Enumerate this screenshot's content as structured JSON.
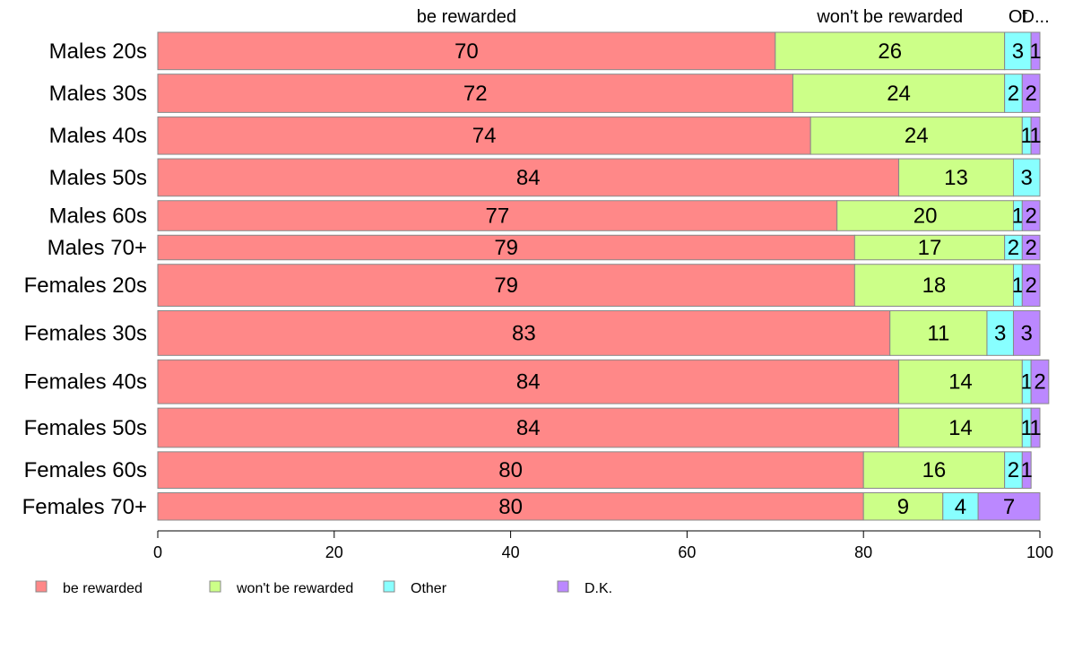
{
  "chart_data": {
    "type": "bar",
    "orientation": "horizontal",
    "stacked": true,
    "categories": [
      "Males 20s",
      "Males 30s",
      "Males 40s",
      "Males 50s",
      "Males 60s",
      "Males 70+",
      "Females 20s",
      "Females 30s",
      "Females 40s",
      "Females 50s",
      "Females 60s",
      "Females 70+"
    ],
    "category_weights": [
      41,
      42,
      41,
      41,
      33,
      27,
      46,
      49,
      48,
      43,
      40,
      30
    ],
    "series": [
      {
        "name": "be rewarded",
        "color": "#ff8888",
        "values": [
          70,
          72,
          74,
          84,
          77,
          79,
          79,
          83,
          84,
          84,
          80,
          80
        ]
      },
      {
        "name": "won't be rewarded",
        "color": "#ccff88",
        "values": [
          26,
          24,
          24,
          13,
          20,
          17,
          18,
          11,
          14,
          14,
          16,
          9
        ]
      },
      {
        "name": "Other",
        "color": "#88ffff",
        "values": [
          3,
          2,
          1,
          3,
          1,
          2,
          1,
          3,
          1,
          1,
          2,
          4
        ]
      },
      {
        "name": "D.K.",
        "color": "#bb88ff",
        "values": [
          1,
          2,
          1,
          0,
          2,
          2,
          2,
          3,
          2,
          1,
          1,
          7
        ]
      }
    ],
    "top_labels": [
      "be rewarded",
      "won't be rewarded",
      "Other",
      "D.K."
    ],
    "top_labels_display": [
      "be rewarded",
      "won't be rewarded",
      "Ot",
      "D..."
    ],
    "xlim": [
      0,
      100
    ],
    "xticks": [
      0,
      20,
      40,
      60,
      80,
      100
    ],
    "grid": false,
    "legend_position": "bottom-left"
  }
}
